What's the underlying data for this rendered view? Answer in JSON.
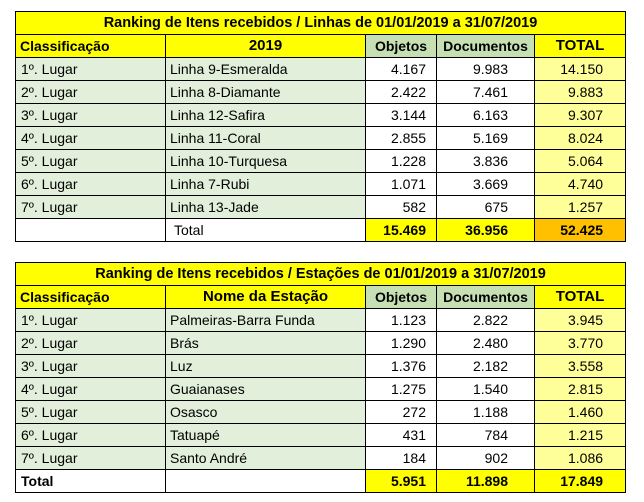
{
  "table1": {
    "title": "Ranking de Itens recebidos / Linhas de 01/01/2019 a 31/07/2019",
    "headers": [
      "Classificação",
      "2019",
      "Objetos",
      "Documentos",
      "TOTAL"
    ],
    "rows": [
      [
        "1º. Lugar",
        "Linha 9-Esmeralda",
        "4.167",
        "9.983",
        "14.150"
      ],
      [
        "2º. Lugar",
        "Linha 8-Diamante",
        "2.422",
        "7.461",
        "9.883"
      ],
      [
        "3º. Lugar",
        "Linha 12-Safira",
        "3.144",
        "6.163",
        "9.307"
      ],
      [
        "4º. Lugar",
        "Linha 11-Coral",
        "2.855",
        "5.169",
        "8.024"
      ],
      [
        "5º. Lugar",
        "Linha 10-Turquesa",
        "1.228",
        "3.836",
        "5.064"
      ],
      [
        "6º. Lugar",
        "Linha 7-Rubi",
        "1.071",
        "3.669",
        "4.740"
      ],
      [
        "7º. Lugar",
        "Linha 13-Jade",
        "582",
        "675",
        "1.257"
      ]
    ],
    "total": [
      "",
      "Total",
      "15.469",
      "36.956",
      "52.425"
    ]
  },
  "table2": {
    "title": "Ranking de Itens recebidos / Estações de 01/01/2019 a 31/07/2019",
    "headers": [
      "Classificação",
      "Nome da Estação",
      "Objetos",
      "Documentos",
      "TOTAL"
    ],
    "rows": [
      [
        "1º. Lugar",
        "Palmeiras-Barra Funda",
        "1.123",
        "2.822",
        "3.945"
      ],
      [
        "2º. Lugar",
        "Brás",
        "1.290",
        "2.480",
        "3.770"
      ],
      [
        "3º. Lugar",
        "Luz",
        "1.376",
        "2.182",
        "3.558"
      ],
      [
        "4º. Lugar",
        "Guaianases",
        "1.275",
        "1.540",
        "2.815"
      ],
      [
        "5º. Lugar",
        "Osasco",
        "272",
        "1.188",
        "1.460"
      ],
      [
        "6º. Lugar",
        "Tatuapé",
        "431",
        "784",
        "1.215"
      ],
      [
        "7º. Lugar",
        "Santo André",
        "184",
        "902",
        "1.086"
      ]
    ],
    "total": [
      "Total",
      "",
      "5.951",
      "11.898",
      "17.849"
    ]
  },
  "colors": {
    "title_bg": "#ffff00",
    "header_green": "#c6e0b4",
    "cell_green": "#e2efda",
    "total_light_yellow": "#ffff99",
    "grand_total_orange": "#ffc000"
  }
}
